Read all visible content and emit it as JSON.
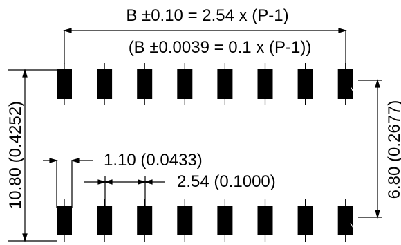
{
  "dimensions": {
    "overall_mm": "B ±0.10 = 2.54 x (P-1)",
    "overall_in": "(B ±0.0039 = 0.1 x (P-1))",
    "pad_width": "1.10 (0.0433)",
    "pitch": "2.54 (0.1000)",
    "outer_span": "10.80 (0.4252)",
    "inner_span": "6.80 (0.2677)"
  },
  "pads": {
    "per_row": 8,
    "rows": 2,
    "color": "#000000"
  }
}
